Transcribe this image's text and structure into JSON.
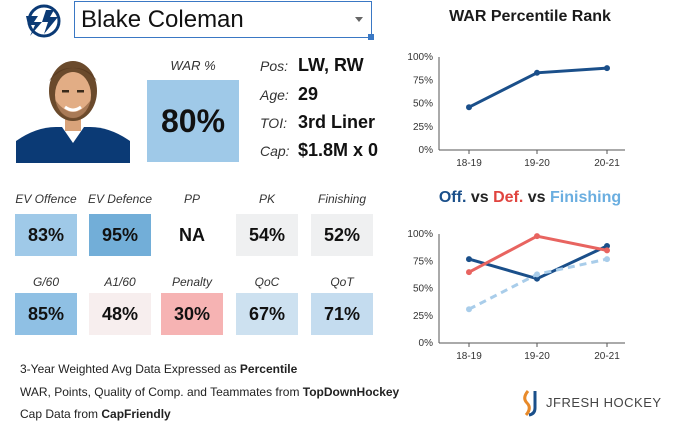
{
  "header": {
    "player_name": "Blake Coleman",
    "team_logo_icon": "lightning-bolt-icon",
    "dropdown_icon": "caret-down-icon"
  },
  "war": {
    "label": "WAR %",
    "value": "80%",
    "color": "#9fc9e8"
  },
  "bio": [
    {
      "label": "Pos:",
      "value": "LW, RW"
    },
    {
      "label": "Age:",
      "value": "29"
    },
    {
      "label": "TOI:",
      "value": "3rd Liner"
    },
    {
      "label": "Cap:",
      "value": "$1.8M x 0"
    }
  ],
  "metrics_row1": [
    {
      "label": "EV Offence",
      "value": "83%",
      "color": "#9fc9e8"
    },
    {
      "label": "EV Defence",
      "value": "95%",
      "color": "#72aed8"
    },
    {
      "label": "PP",
      "value": "NA",
      "color": "#ffffff"
    },
    {
      "label": "PK",
      "value": "54%",
      "color": "#eff0f1"
    },
    {
      "label": "Finishing",
      "value": "52%",
      "color": "#eff0f1"
    }
  ],
  "metrics_row2": [
    {
      "label": "G/60",
      "value": "85%",
      "color": "#8fc0e4"
    },
    {
      "label": "A1/60",
      "value": "48%",
      "color": "#f7eeee"
    },
    {
      "label": "Penalty",
      "value": "30%",
      "color": "#f6b3b3"
    },
    {
      "label": "QoC",
      "value": "67%",
      "color": "#cde1f0"
    },
    {
      "label": "QoT",
      "value": "71%",
      "color": "#c4dcef"
    }
  ],
  "notes": {
    "line1_prefix": "3-Year Weighted Avg Data Expressed as ",
    "line1_bold": "Percentile",
    "line2_prefix": "WAR, Points, Quality of Comp. and Teammates from ",
    "line2_bold": "TopDownHockey",
    "line3_prefix": "Cap Data from ",
    "line3_bold": "CapFriendly"
  },
  "brand": {
    "text": "JFRESH HOCKEY",
    "icon": "jfresh-logo-icon"
  },
  "chart_data": [
    {
      "type": "line",
      "title": "WAR Percentile Rank",
      "categories": [
        "18-19",
        "19-20",
        "20-21"
      ],
      "series": [
        {
          "values": [
            46,
            83,
            88
          ],
          "color": "#1a4f8a"
        }
      ],
      "ylim": [
        0,
        100
      ],
      "yticks": [
        "0%",
        "25%",
        "50%",
        "75%",
        "100%"
      ],
      "grid": false
    },
    {
      "type": "line",
      "title_parts": [
        {
          "text": "Off.",
          "color": "#1a4f8a"
        },
        {
          "text": " vs ",
          "color": "#222222"
        },
        {
          "text": "Def.",
          "color": "#e0443f"
        },
        {
          "text": " vs ",
          "color": "#222222"
        },
        {
          "text": "Finishing",
          "color": "#6aaee0"
        }
      ],
      "categories": [
        "18-19",
        "19-20",
        "20-21"
      ],
      "series": [
        {
          "name": "Off.",
          "values": [
            77,
            59,
            89
          ],
          "color": "#1a4f8a",
          "dashed": false
        },
        {
          "name": "Def.",
          "values": [
            65,
            98,
            85
          ],
          "color": "#e86460",
          "dashed": false
        },
        {
          "name": "Finishing",
          "values": [
            31,
            63,
            77
          ],
          "color": "#a9cdea",
          "dashed": true
        }
      ],
      "ylim": [
        0,
        100
      ],
      "yticks": [
        "0%",
        "25%",
        "50%",
        "75%",
        "100%"
      ],
      "grid": false
    }
  ]
}
